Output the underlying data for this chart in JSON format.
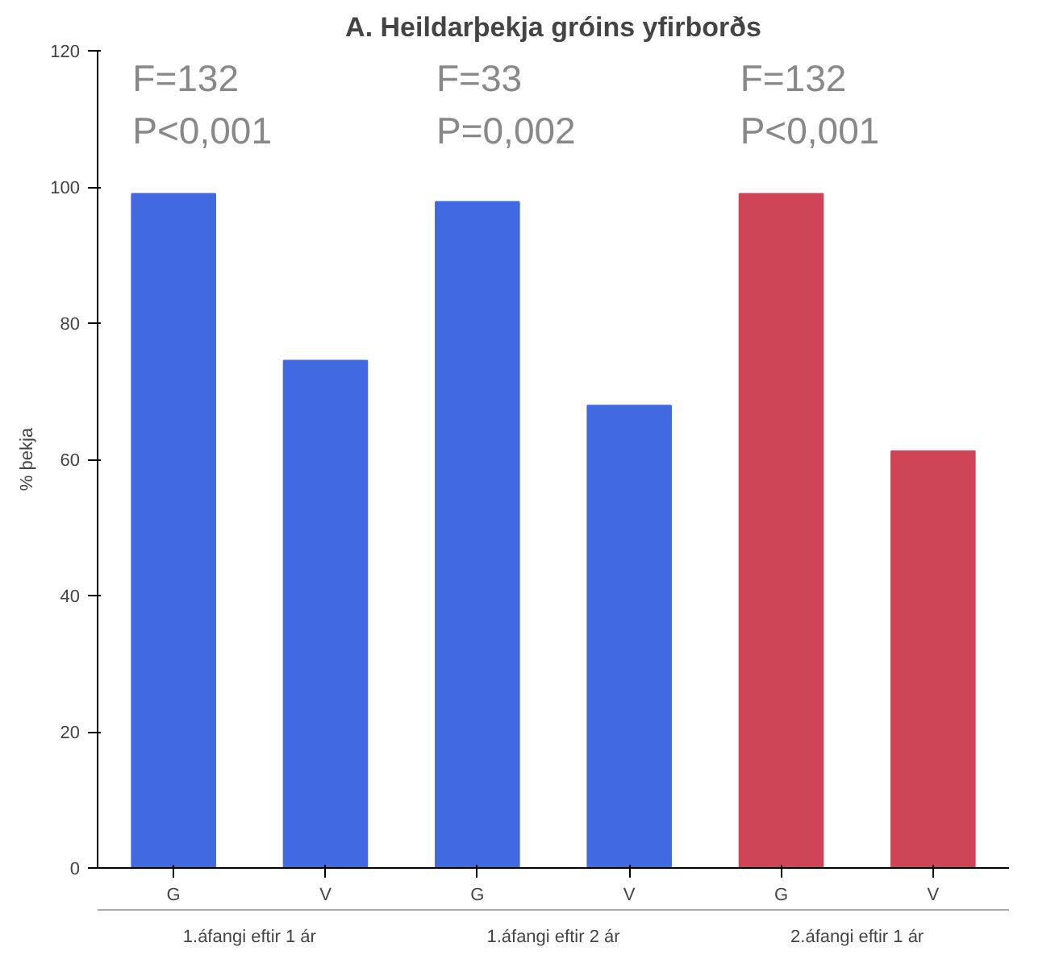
{
  "chart_data": {
    "type": "bar",
    "title": "A. Heildarþekja gróins yfirborðs",
    "ylabel": "% þekja",
    "categories": [
      "G",
      "V",
      "G",
      "V",
      "G",
      "V"
    ],
    "values": [
      99,
      74.5,
      97.8,
      67.9,
      99,
      61.2
    ],
    "colors": [
      "#4169e1",
      "#4169e1",
      "#4169e1",
      "#4169e1",
      "#d04457",
      "#d04457"
    ],
    "ylim": [
      0,
      120
    ],
    "yticks": [
      0,
      20,
      40,
      60,
      80,
      100,
      120
    ],
    "annotations": [
      "F=132\nP<0,001",
      "F=33\nP=0,002",
      "F=132\nP<0,001",
      "1.áfangi eftir 1 ár",
      "1.áfangi eftir 2 ár",
      "2.áfangi eftir 1 ár"
    ]
  }
}
